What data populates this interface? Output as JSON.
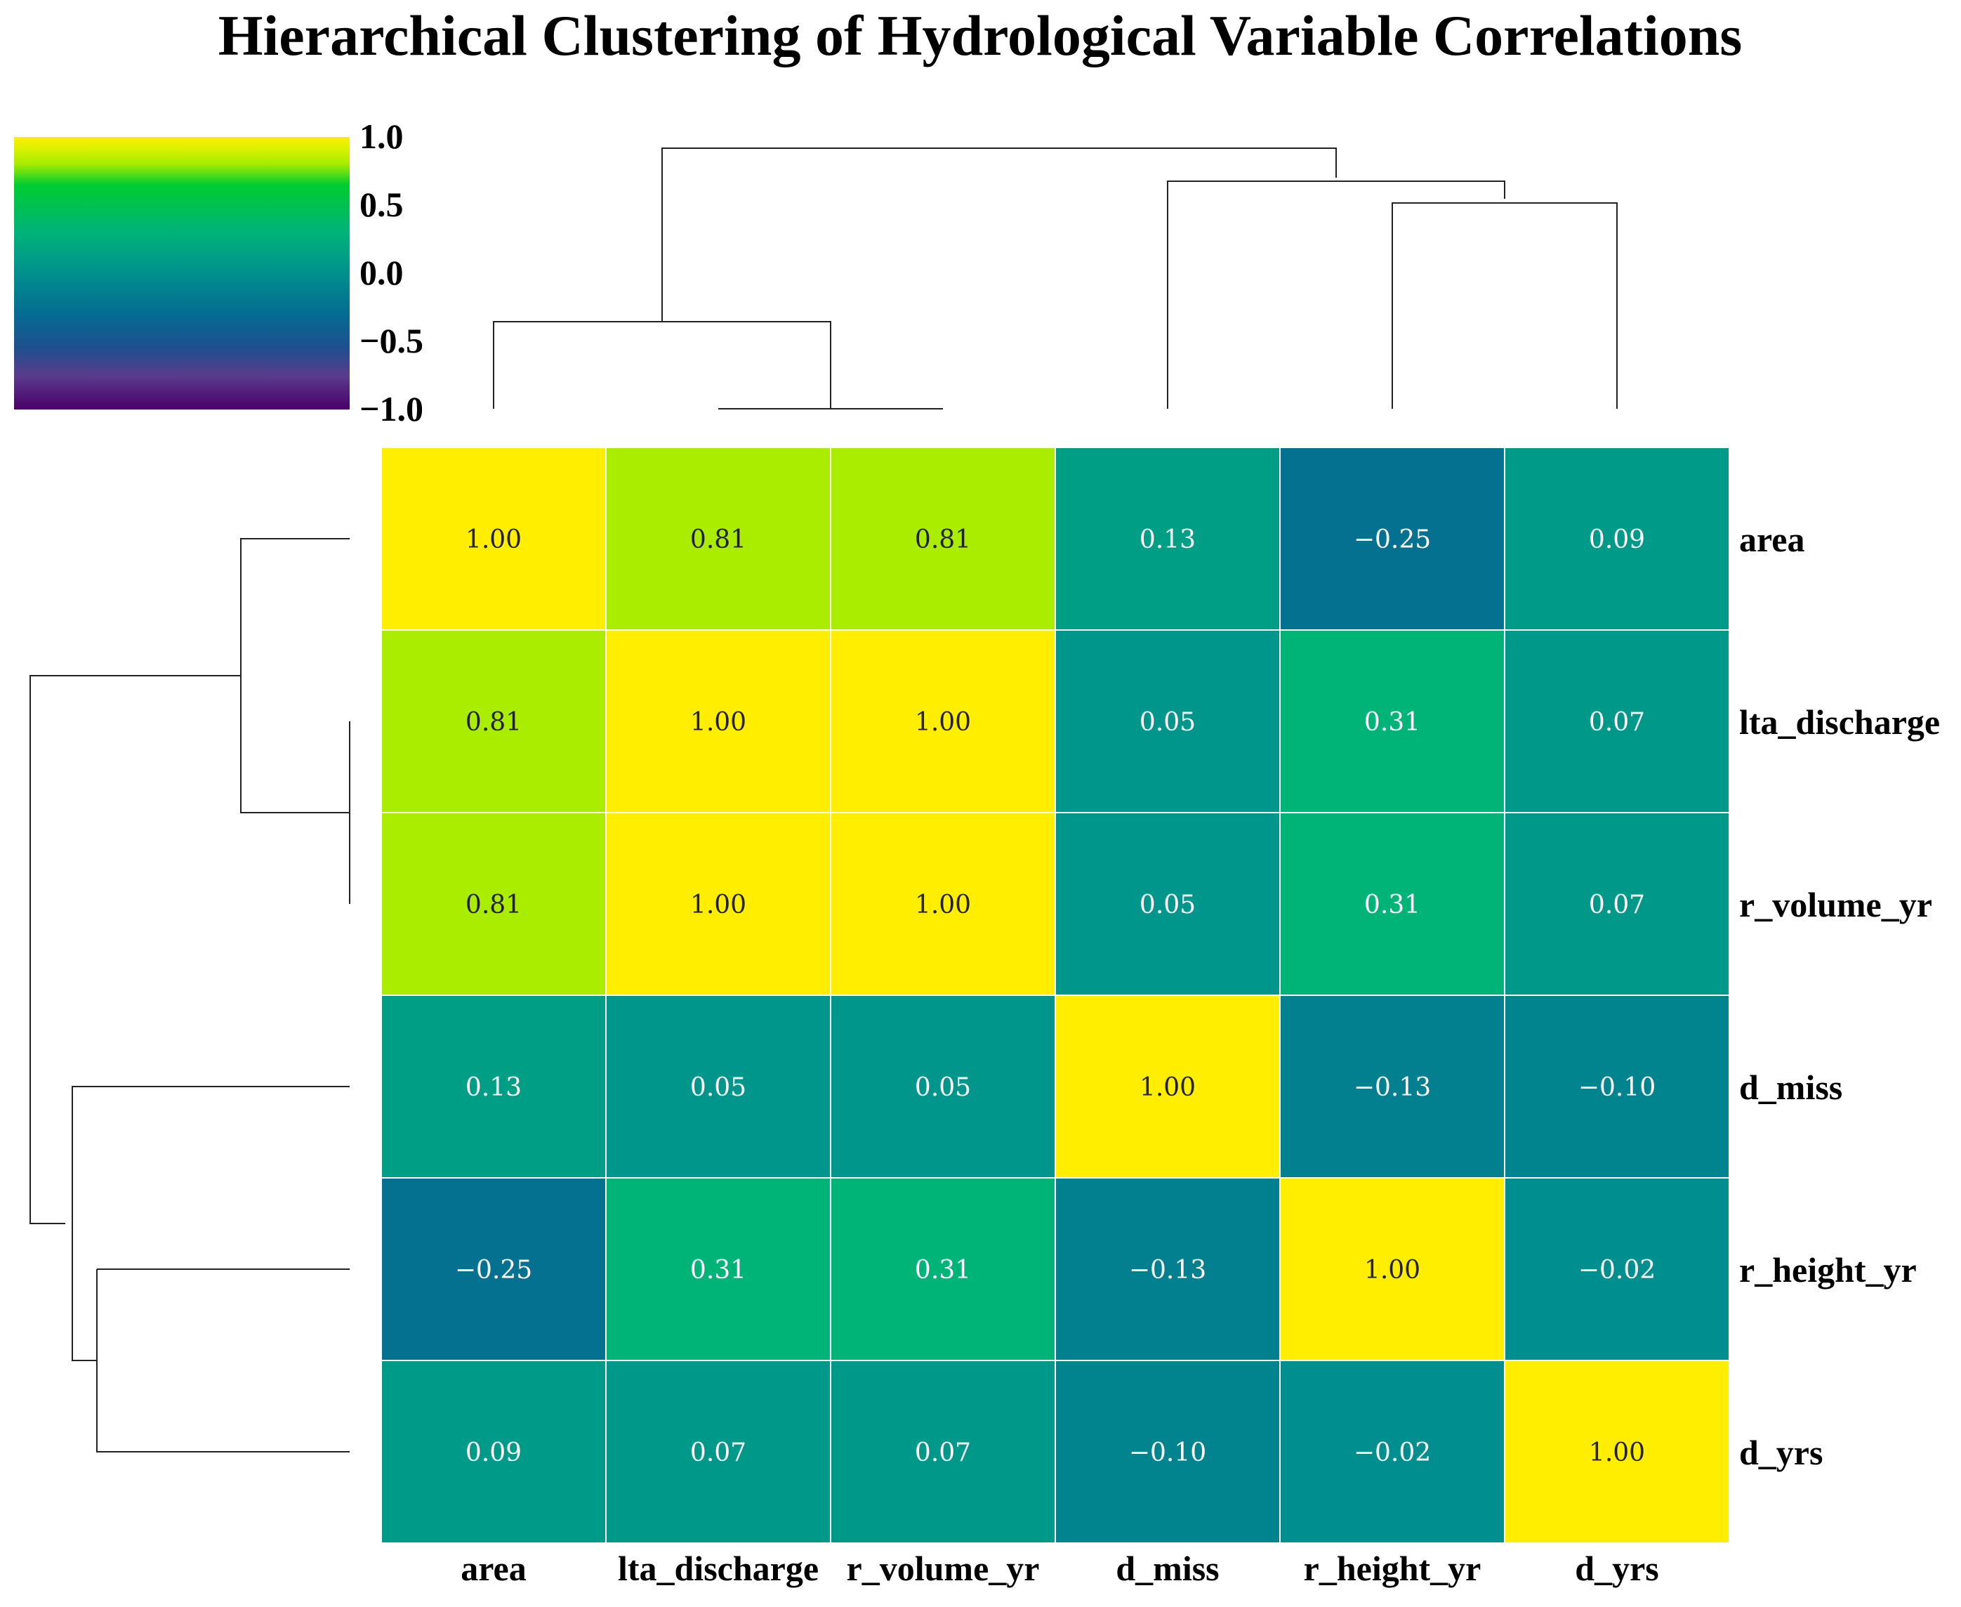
{
  "chart_data": {
    "type": "heatmap",
    "title": "Hierarchical Clustering of Hydrological Variable Correlations",
    "columns": [
      "area",
      "lta_discharge",
      "r_volume_yr",
      "d_miss",
      "r_height_yr",
      "d_yrs"
    ],
    "rows": [
      "area",
      "lta_discharge",
      "r_volume_yr",
      "d_miss",
      "r_height_yr",
      "d_yrs"
    ],
    "values": [
      [
        1.0,
        0.81,
        0.81,
        0.13,
        -0.25,
        0.09
      ],
      [
        0.81,
        1.0,
        1.0,
        0.05,
        0.31,
        0.07
      ],
      [
        0.81,
        1.0,
        1.0,
        0.05,
        0.31,
        0.07
      ],
      [
        0.13,
        0.05,
        0.05,
        1.0,
        -0.13,
        -0.1
      ],
      [
        -0.25,
        0.31,
        0.31,
        -0.13,
        1.0,
        -0.02
      ],
      [
        0.09,
        0.07,
        0.07,
        -0.1,
        -0.02,
        1.0
      ]
    ],
    "value_labels": [
      [
        "1.00",
        "0.81",
        "0.81",
        "0.13",
        "−0.25",
        "0.09"
      ],
      [
        "0.81",
        "1.00",
        "1.00",
        "0.05",
        "0.31",
        "0.07"
      ],
      [
        "0.81",
        "1.00",
        "1.00",
        "0.05",
        "0.31",
        "0.07"
      ],
      [
        "0.13",
        "0.05",
        "0.05",
        "1.00",
        "−0.13",
        "−0.10"
      ],
      [
        "−0.25",
        "0.31",
        "0.31",
        "−0.13",
        "1.00",
        "−0.02"
      ],
      [
        "0.09",
        "0.07",
        "0.07",
        "−0.10",
        "−0.02",
        "1.00"
      ]
    ],
    "colorbar": {
      "range": [
        -1.0,
        1.0
      ],
      "ticks": [
        "1.0",
        "0.5",
        "0.0",
        "−0.5",
        "−1.0"
      ],
      "tick_values": [
        1.0,
        0.5,
        0.0,
        -0.5,
        -1.0
      ],
      "colormap": [
        {
          "v": -1.0,
          "c": "#4a0068"
        },
        {
          "v": -0.75,
          "c": "#5a3c8c"
        },
        {
          "v": -0.55,
          "c": "#1f4f8f"
        },
        {
          "v": -0.3,
          "c": "#056b92"
        },
        {
          "v": 0.0,
          "c": "#00908e"
        },
        {
          "v": 0.3,
          "c": "#00b37a"
        },
        {
          "v": 0.65,
          "c": "#00cc30"
        },
        {
          "v": 0.8,
          "c": "#a6ec00"
        },
        {
          "v": 0.92,
          "c": "#dcf200"
        },
        {
          "v": 1.0,
          "c": "#ffee00"
        }
      ]
    },
    "column_dendrogram": true,
    "row_dendrogram": true,
    "grid_lines": "white",
    "text_color_dark": "#222222",
    "text_color_light": "#ffffff"
  }
}
